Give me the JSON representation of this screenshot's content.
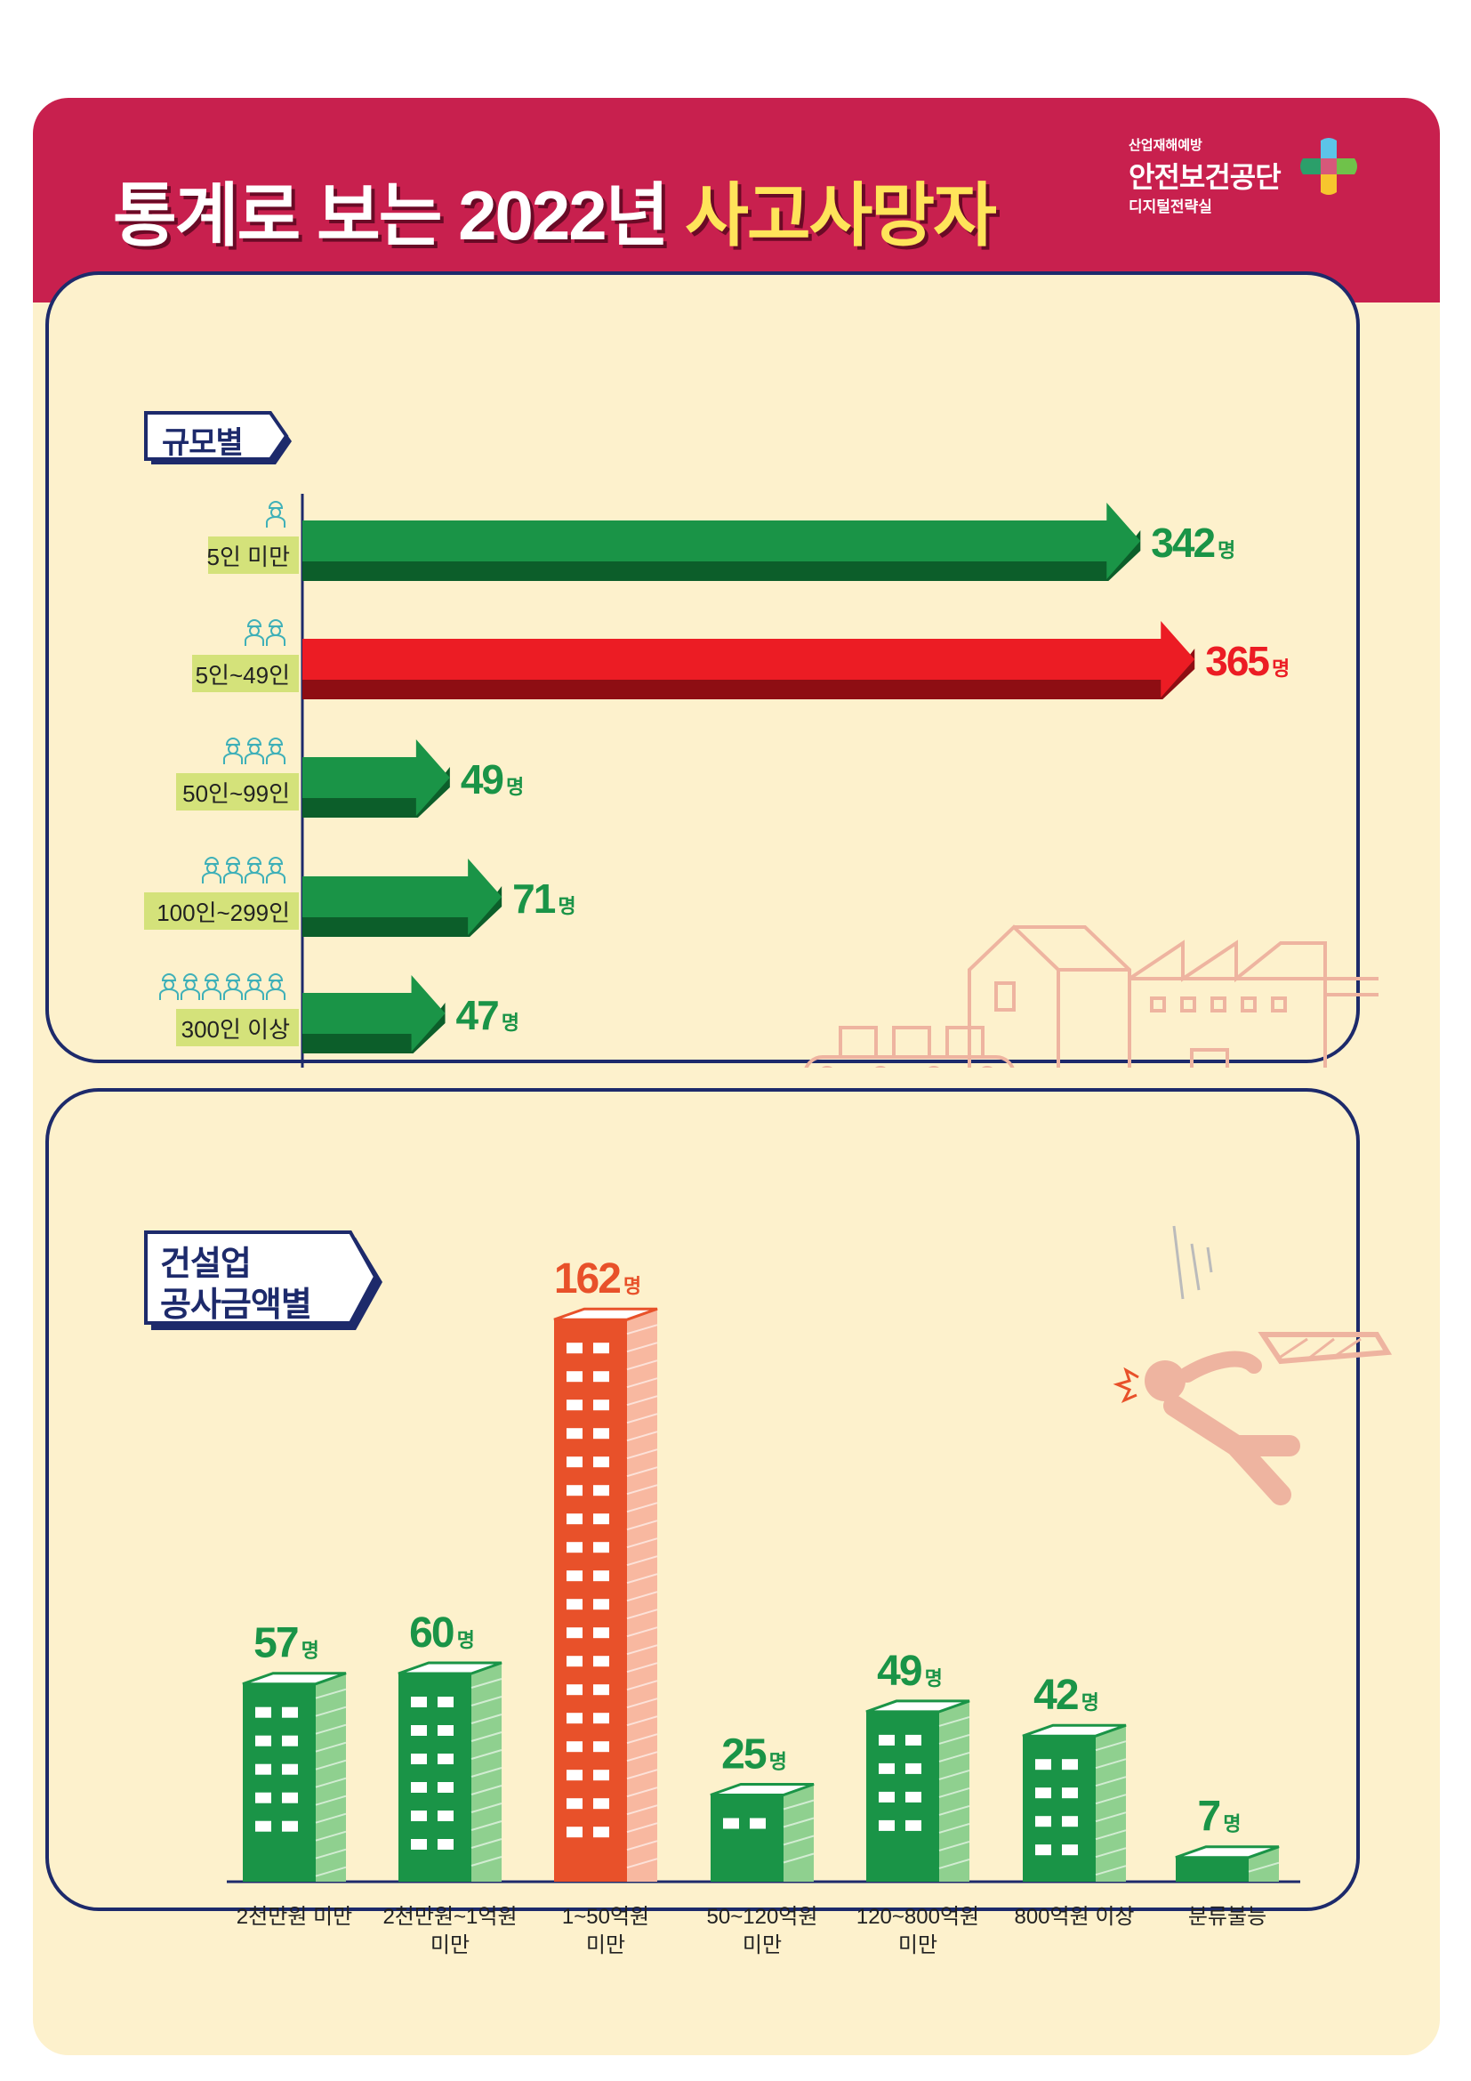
{
  "header": {
    "title_main": "통계로 보는 2022년",
    "title_highlight": "사고사망자",
    "logo": {
      "line1": "산업재해예방",
      "line2": "안전보건공단",
      "line3": "디지털전략실"
    }
  },
  "colors": {
    "header_bg": "#c8204e",
    "page_bg": "#fdf1cc",
    "navy": "#1d2a6b",
    "green": "#1a9447",
    "dark_green": "#0c5e2a",
    "red": "#ec1c24",
    "orange": "#e8512a",
    "label_bg": "#d4e27a",
    "illustration": "#eeb4a0"
  },
  "sections": {
    "size": {
      "tag": "규모별"
    },
    "construction": {
      "tag_line1": "건설업",
      "tag_line2": "공사금액별"
    }
  },
  "chart_data": [
    {
      "type": "bar",
      "orientation": "horizontal",
      "title": "규모별",
      "categories": [
        "5인 미만",
        "5인~49인",
        "50인~99인",
        "100인~299인",
        "300인 이상"
      ],
      "values": [
        342,
        365,
        49,
        71,
        47
      ],
      "value_suffix": "명",
      "highlight_index": 1,
      "workers_icons": [
        1,
        2,
        3,
        4,
        6
      ]
    },
    {
      "type": "bar",
      "orientation": "vertical",
      "title": "건설업 공사금액별",
      "categories": [
        "2천만원 미만",
        "2천만원~1억원 미만",
        "1~50억원 미만",
        "50~120억원 미만",
        "120~800억원 미만",
        "800억원 이상",
        "분류불능"
      ],
      "category_lines": [
        [
          "2천만원 미만"
        ],
        [
          "2천만원~1억원",
          "미만"
        ],
        [
          "1~50억원",
          "미만"
        ],
        [
          "50~120억원",
          "미만"
        ],
        [
          "120~800억원",
          "미만"
        ],
        [
          "800억원 이상"
        ],
        [
          "분류불능"
        ]
      ],
      "values": [
        57,
        60,
        162,
        25,
        49,
        42,
        7
      ],
      "value_suffix": "명",
      "highlight_index": 2
    }
  ]
}
